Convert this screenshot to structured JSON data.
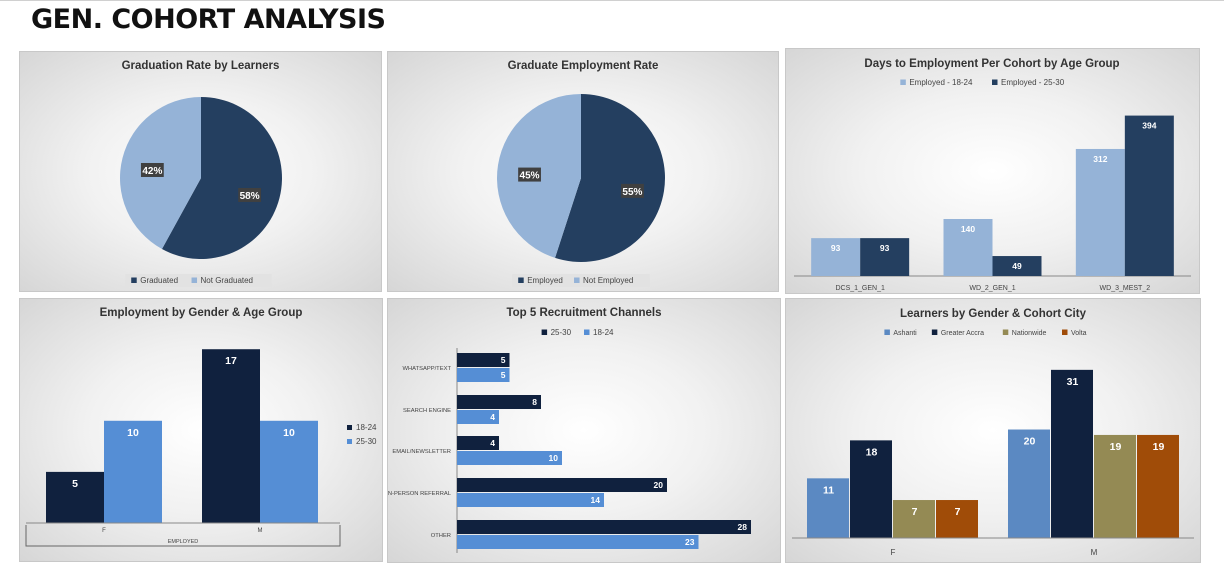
{
  "page": {
    "title": "GEN. COHORT ANALYSIS"
  },
  "chart_data": [
    {
      "id": "grad",
      "type": "pie",
      "title": "Graduation Rate by Learners",
      "slices": [
        {
          "name": "Graduated",
          "value": 58,
          "label": "58%"
        },
        {
          "name": "Not Graduated",
          "value": 42,
          "label": "42%"
        }
      ],
      "colors": [
        "#243f60",
        "#95b3d7"
      ],
      "legend": "bottom"
    },
    {
      "id": "emp",
      "type": "pie",
      "title": "Graduate Employment Rate",
      "slices": [
        {
          "name": "Employed",
          "value": 55,
          "label": "55%"
        },
        {
          "name": "Not Employed",
          "value": 45,
          "label": "45%"
        }
      ],
      "colors": [
        "#243f60",
        "#95b3d7"
      ],
      "legend": "bottom"
    },
    {
      "id": "days",
      "type": "bar",
      "title": "Days to Employment Per Cohort by Age Group",
      "categories": [
        "DCS_1_GEN_1",
        "WD_2_GEN_1",
        "WD_3_MEST_2"
      ],
      "series": [
        {
          "name": "Employed - 18-24",
          "values": [
            93,
            140,
            312
          ],
          "color": "#95b3d7"
        },
        {
          "name": "Employed - 25-30",
          "values": [
            93,
            49,
            394
          ],
          "color": "#243f60"
        }
      ],
      "ylim": [
        0,
        420
      ],
      "legend": "top"
    },
    {
      "id": "gender",
      "type": "bar",
      "title": "Employment by Gender & Age Group",
      "group_label": "EMPLOYED",
      "categories": [
        "F",
        "M"
      ],
      "series": [
        {
          "name": "18-24",
          "values": [
            5,
            17
          ],
          "color": "#10213e"
        },
        {
          "name": "25-30",
          "values": [
            10,
            10
          ],
          "color": "#558ed5"
        }
      ],
      "ylim": [
        0,
        18
      ],
      "legend": "right"
    },
    {
      "id": "channels",
      "type": "bar",
      "orientation": "horizontal",
      "title": "Top 5 Recruitment Channels",
      "categories": [
        "WHATSAPP/TEXT",
        "SEARCH ENGINE",
        "EMAIL/NEWSLETTER",
        "IN-PERSON REFERRAL",
        "OTHER"
      ],
      "series": [
        {
          "name": "25-30",
          "values": [
            5,
            8,
            4,
            20,
            28
          ],
          "color": "#10213e"
        },
        {
          "name": "18-24",
          "values": [
            5,
            4,
            10,
            14,
            23
          ],
          "color": "#558ed5"
        }
      ],
      "xlim": [
        0,
        30
      ],
      "legend": "top"
    },
    {
      "id": "city",
      "type": "bar",
      "title": "Learners by Gender & Cohort City",
      "categories": [
        "F",
        "M"
      ],
      "series": [
        {
          "name": "Ashanti",
          "values": [
            11,
            20
          ],
          "color": "#5b89c2"
        },
        {
          "name": "Greater Accra",
          "values": [
            18,
            31
          ],
          "color": "#10213e"
        },
        {
          "name": "Nationwide",
          "values": [
            7,
            19
          ],
          "color": "#948a54"
        },
        {
          "name": "Volta",
          "values": [
            7,
            19
          ],
          "color": "#a04c08"
        }
      ],
      "ylim": [
        0,
        33
      ],
      "legend": "top"
    }
  ]
}
